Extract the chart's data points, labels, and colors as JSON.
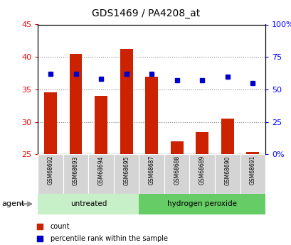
{
  "title": "GDS1469 / PA4208_at",
  "samples": [
    "GSM68692",
    "GSM68693",
    "GSM68694",
    "GSM68695",
    "GSM68687",
    "GSM68688",
    "GSM68689",
    "GSM68690",
    "GSM68691"
  ],
  "counts": [
    34.5,
    40.5,
    34.0,
    41.2,
    37.0,
    27.0,
    28.4,
    30.5,
    25.4
  ],
  "percentiles": [
    62,
    62,
    58,
    62,
    62,
    57,
    57,
    60,
    55
  ],
  "baseline": 25.0,
  "ylim_left": [
    25,
    45
  ],
  "ylim_right": [
    0,
    100
  ],
  "yticks_left": [
    25,
    30,
    35,
    40,
    45
  ],
  "yticks_right": [
    0,
    25,
    50,
    75,
    100
  ],
  "ytick_labels_right": [
    "0%",
    "25",
    "50",
    "75",
    "100%"
  ],
  "groups": [
    {
      "label": "untreated",
      "indices": [
        0,
        1,
        2,
        3
      ],
      "color": "#c8f0c8"
    },
    {
      "label": "hydrogen peroxide",
      "indices": [
        4,
        5,
        6,
        7,
        8
      ],
      "color": "#66cc66"
    }
  ],
  "bar_color": "#cc2200",
  "marker_color": "#0000cc",
  "bar_width": 0.5,
  "bg_xtick": "#d4d4d4",
  "agent_label": "agent",
  "legend_count_label": "count",
  "legend_pct_label": "percentile rank within the sample",
  "title_fontsize": 10,
  "tick_fontsize": 8,
  "sample_fontsize": 5.5,
  "group_fontsize": 7.5
}
